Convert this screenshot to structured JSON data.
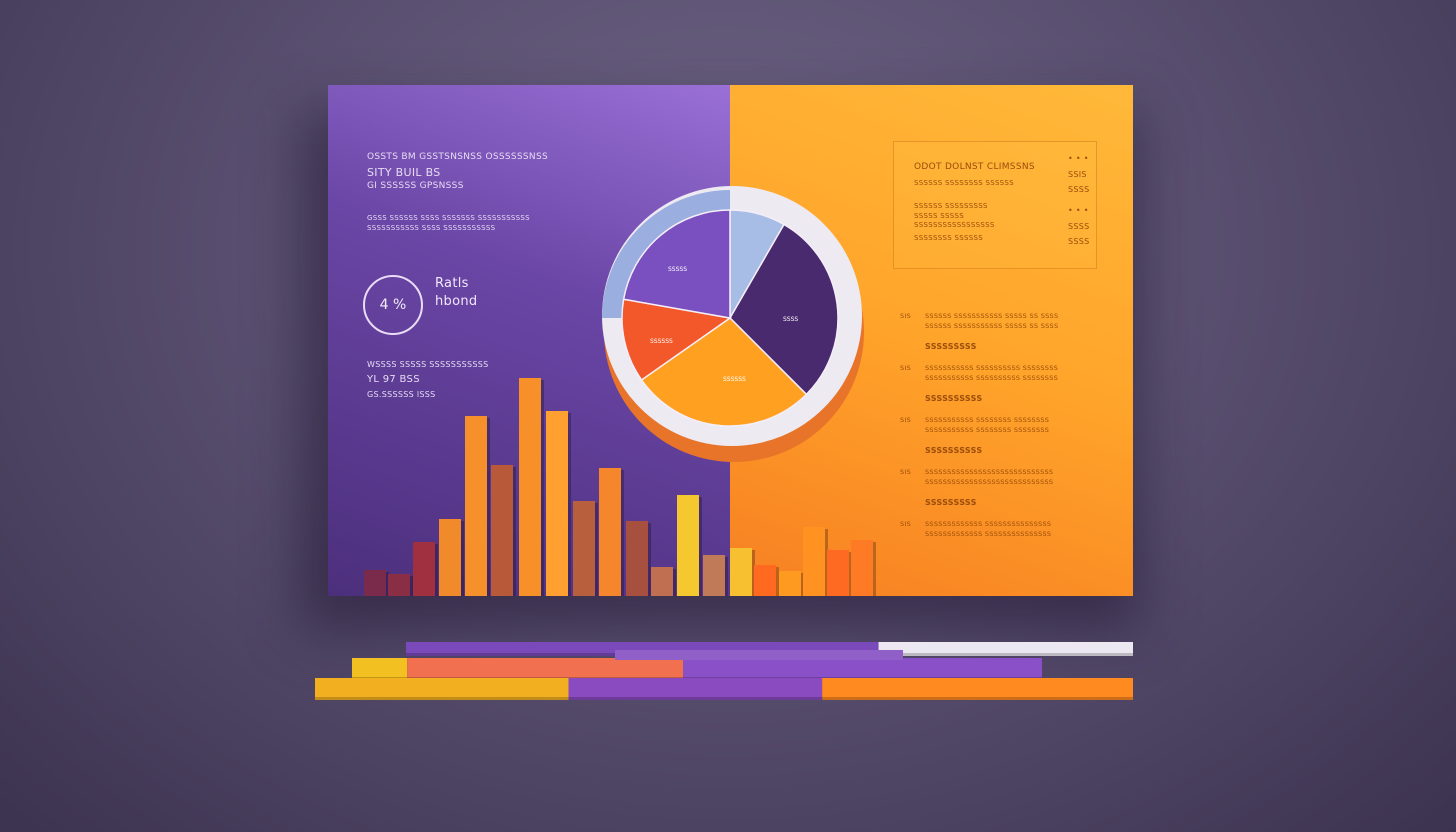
{
  "left_panel": {
    "header_lines": [
      "OSSTS BM GSSTSNSNSS OSSSSSSNSS",
      "SITY BUIL BS",
      "GI SSSSSS GPSNSSS"
    ],
    "paragraph_lines": [
      "GSSS SSSSSS  SSSS SSSSSSS  SSSSSSSSSSS",
      "SSSSSSSSSSS SSSS SSSSSSSSSSS"
    ],
    "ring_value": "4 %",
    "ring_label_lines": [
      "Ratls",
      "hbond"
    ],
    "footer_lines": [
      "WSSSS SSSSS SSSSSSSSSSS",
      "YL 97 BSS",
      "GS.SSSSSS lSSS"
    ]
  },
  "pie": {
    "labels": [
      "SSSSS",
      "SSSS",
      "SSSSSS",
      "SSSSSS"
    ],
    "slices": [
      {
        "value": 30,
        "color": "#a8bde6"
      },
      {
        "value": 105,
        "color": "#4a2a6e"
      },
      {
        "value": 100,
        "color": "#ffa020"
      },
      {
        "value": 45,
        "color": "#f2582a"
      },
      {
        "value": 80,
        "color": "#7a4fbf"
      }
    ]
  },
  "info_box": {
    "title": "ODOT DOLNST CLIMSSNS",
    "subtitle": "SSSSSS SSSSSSSS SSSSSS",
    "lines": [
      "SSSSSS SSSSSSSSS",
      "SSSSS SSSSS",
      "SSSSSSSSSSSSSSSSS",
      "SSSSSSSS SSSSSS"
    ],
    "values": [
      "SSIS",
      "SSSS",
      "SSSS",
      "SSSS"
    ]
  },
  "right_list": [
    {
      "num": "SIS",
      "line1": "SSSSSS SSSSSSSSSSS SSSSS SS SSSS",
      "heading": "SSSSSSSSS"
    },
    {
      "num": "SIS",
      "line1": "SSSSSSSSSSS SSSSSSSSSS SSSSSSSS",
      "heading": "SSSSSSSSSS"
    },
    {
      "num": "SIS",
      "line1": "SSSSSSSSSSS SSSSSSSS SSSSSSSS",
      "heading": "SSSSSSSSSS"
    },
    {
      "num": "SIS",
      "line1": "SSSSSSSSSSSSSSSSSSSSSSSSSSSSS",
      "heading": "SSSSSSSSS"
    },
    {
      "num": "SIS",
      "line1": "SSSSSSSSSSSSS SSSSSSSSSSSSSSS",
      "heading": ""
    }
  ],
  "bars": {
    "values": [
      26,
      22,
      54,
      77,
      180,
      131,
      218,
      185,
      95,
      128,
      75,
      29,
      101,
      41,
      48,
      31,
      25,
      69,
      46,
      56
    ],
    "colors": [
      "#7a2a4a",
      "#8a2e46",
      "#a03040",
      "#f08a2a",
      "#f5902a",
      "#b85a3a",
      "#f8902a",
      "#ffa030",
      "#b8603e",
      "#f5862c",
      "#a85040",
      "#c07050",
      "#f6c830",
      "#c07a58",
      "#f6c030",
      "#ff6a20",
      "#ff9a20",
      "#ff9220",
      "#ff6a22",
      "#ff7a25"
    ]
  },
  "stacked_bars": [
    [
      {
        "value": 65,
        "color": "#7a4aba"
      },
      {
        "value": 35,
        "color": "#ece8f2"
      }
    ],
    [
      {
        "value": 8,
        "color": "#f2c020"
      },
      {
        "value": 40,
        "color": "#f07050"
      },
      {
        "value": 52,
        "color": "#8a50c8"
      }
    ],
    [
      {
        "value": 31,
        "color": "#f2b020"
      },
      {
        "value": 31,
        "color": "#8a4ac0"
      },
      {
        "value": 38,
        "color": "#ff8a20"
      }
    ]
  ]
}
